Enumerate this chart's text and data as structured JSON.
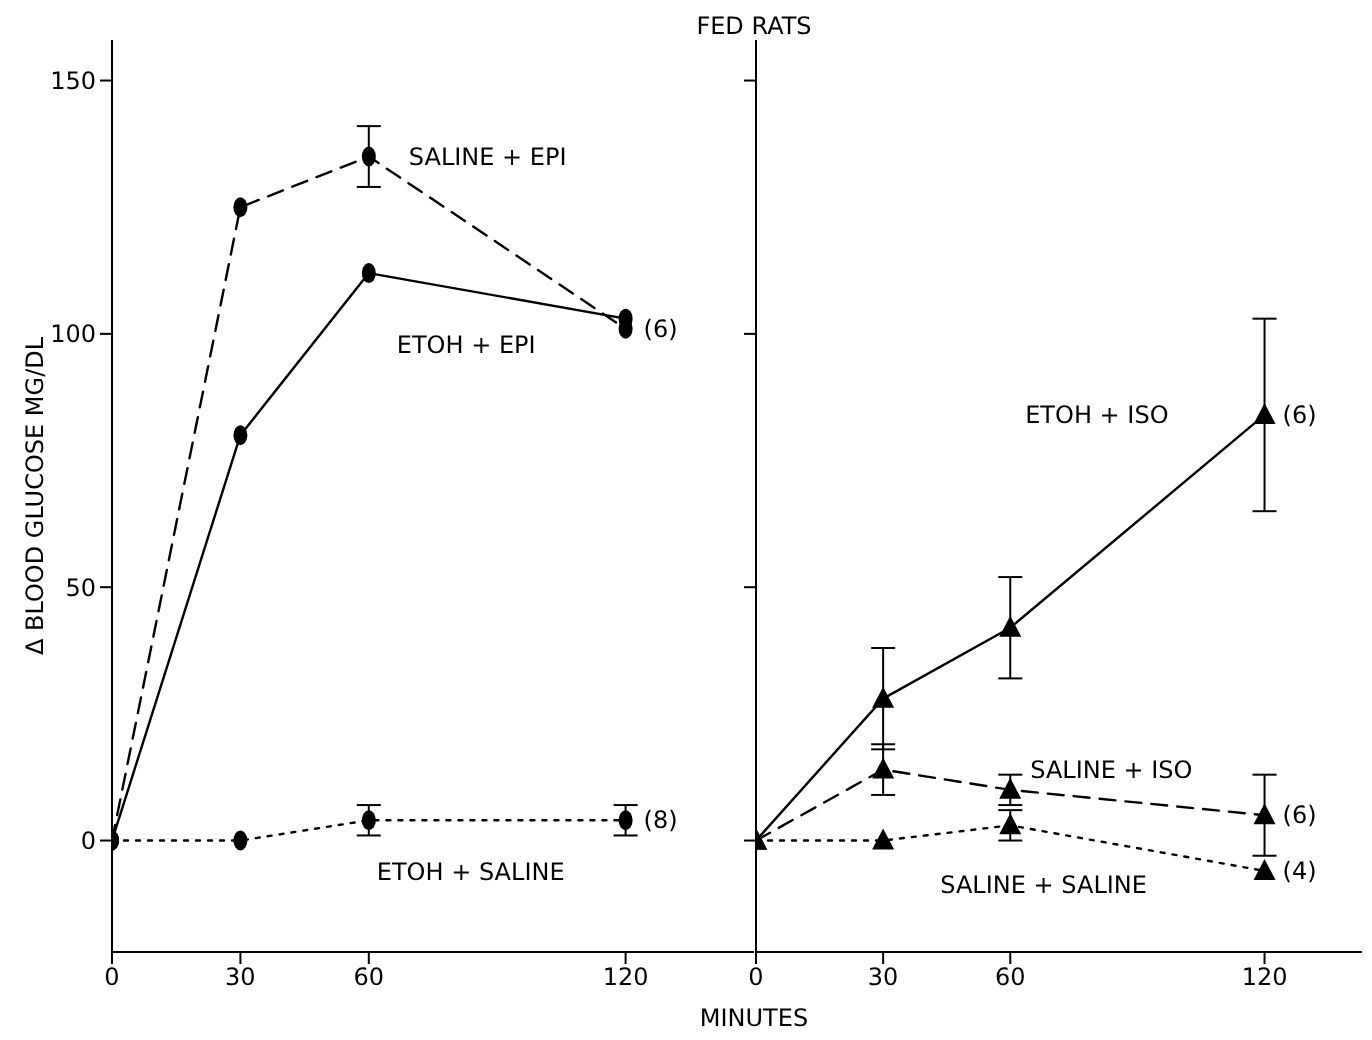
{
  "chart_data": [
    {
      "type": "line",
      "title": "FED RATS",
      "xlabel": "MINUTES",
      "ylabel": "Δ BLOOD GLUCOSE MG/DL",
      "x": [
        0,
        30,
        60,
        120
      ],
      "xlim": [
        0,
        150
      ],
      "xticks": [
        0,
        30,
        60,
        120
      ],
      "ylim": [
        -22,
        158
      ],
      "yticks": [
        0,
        50,
        100,
        150
      ],
      "marker": "circle",
      "series": [
        {
          "name": "SALINE + EPI",
          "color": "#000000",
          "line_style": "dashed",
          "values": [
            0,
            125,
            135,
            101
          ],
          "errors": [
            null,
            null,
            6,
            null
          ]
        },
        {
          "name": "ETOH + EPI",
          "color": "#000000",
          "line_style": "solid",
          "values": [
            0,
            80,
            112,
            103
          ]
        },
        {
          "name": "ETOH + SALINE",
          "color": "#000000",
          "line_style": "dotted",
          "values": [
            0,
            0,
            4,
            4
          ],
          "errors": [
            null,
            null,
            3,
            3
          ]
        }
      ],
      "annotations": [
        "(6)",
        "(8)"
      ]
    },
    {
      "type": "line",
      "x": [
        0,
        30,
        60,
        120
      ],
      "xlim": [
        0,
        143
      ],
      "xticks": [
        0,
        30,
        60,
        120
      ],
      "ylim": [
        -22,
        158
      ],
      "yticks": [
        0,
        50,
        100,
        150
      ],
      "tick_labels": "x",
      "marker": "triangle",
      "series": [
        {
          "name": "ETOH + ISO",
          "color": "#000000",
          "line_style": "solid",
          "values": [
            0,
            28,
            42,
            84
          ],
          "errors": [
            null,
            10,
            10,
            19
          ]
        },
        {
          "name": "SALINE + ISO",
          "color": "#000000",
          "line_style": "dashed",
          "values": [
            0,
            14,
            10,
            5
          ],
          "errors": [
            null,
            5,
            3,
            8
          ]
        },
        {
          "name": "SALINE + SALINE",
          "color": "#000000",
          "line_style": "dotted",
          "values": [
            0,
            0,
            3,
            -6
          ],
          "errors": [
            null,
            null,
            3,
            null
          ]
        }
      ],
      "annotations": [
        "(6)",
        "(6)",
        "(4)"
      ]
    }
  ]
}
